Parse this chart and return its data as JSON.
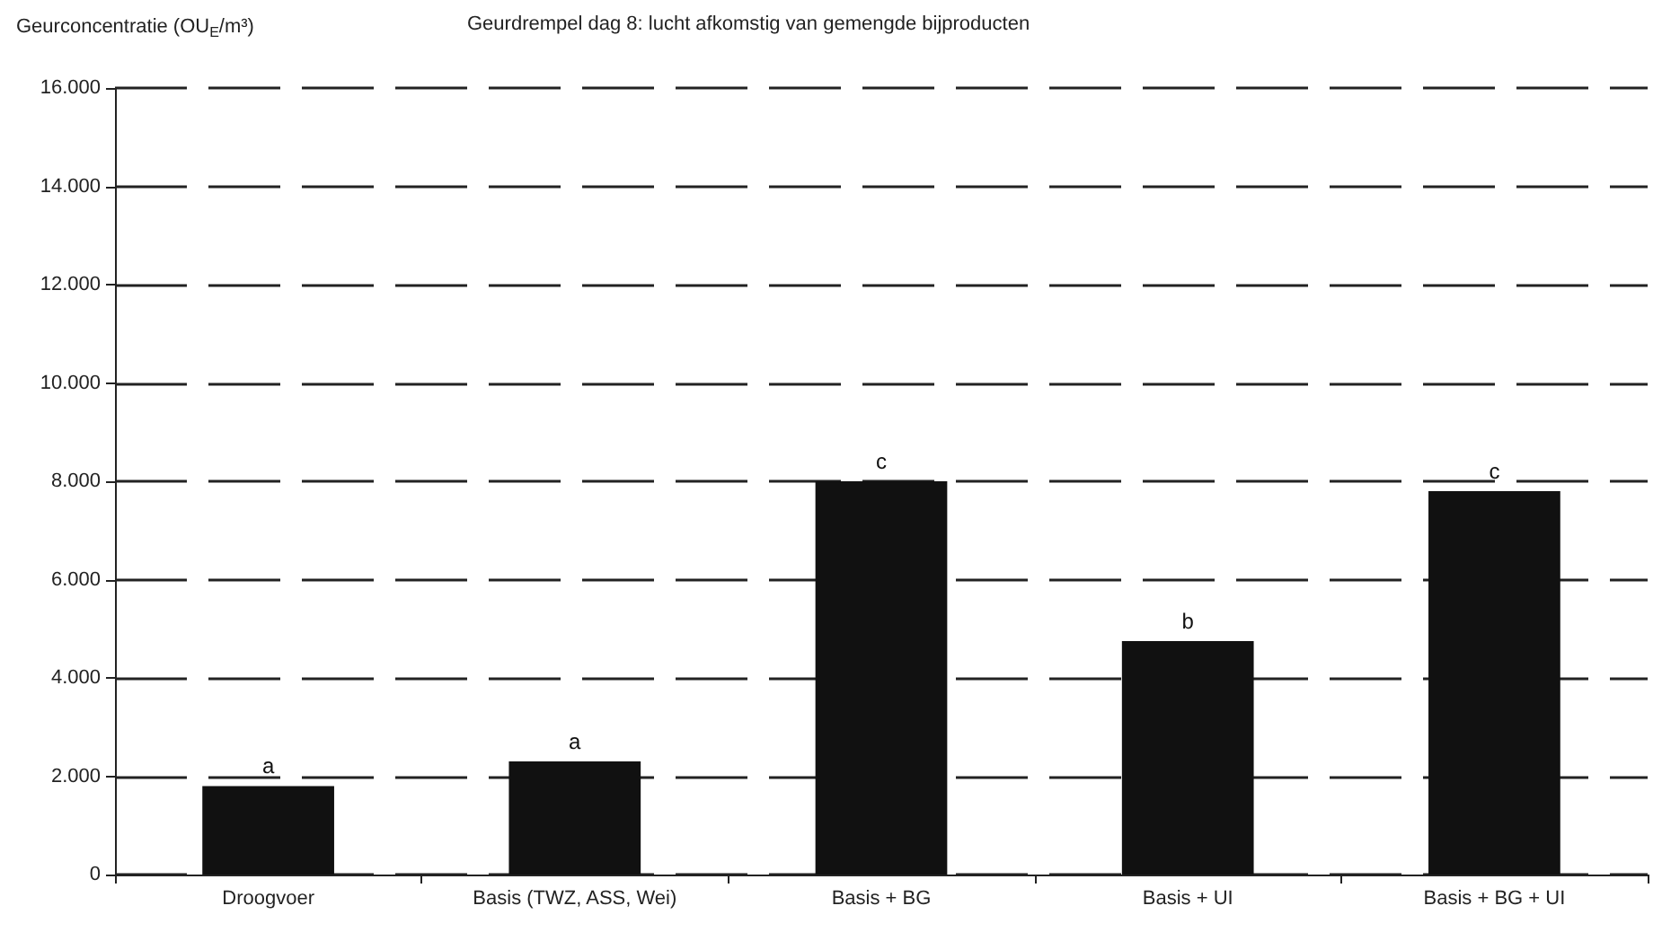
{
  "chart_data": {
    "type": "bar",
    "title": "Geurdrempel dag 8: lucht afkomstig van gemengde bijproducten",
    "ylabel": "Geurconcentratie (OU$_{E}$/m³)",
    "categories": [
      "Droogvoer",
      "Basis (TWZ, ASS, Wei)",
      "Basis + BG",
      "Basis + UI",
      "Basis + BG + UI"
    ],
    "values": [
      1800,
      2300,
      8000,
      4750,
      7800
    ],
    "color": "#111111",
    "ylim": [
      0,
      16000
    ],
    "yticks": [
      0,
      {
        "value": 2000,
        "label": "2.000"
      },
      {
        "value": 4000,
        "label": "4.000"
      },
      {
        "value": 6000,
        "label": "6.000"
      },
      {
        "value": 8000,
        "label": "8.000"
      },
      {
        "value": 10000,
        "label": "10.000"
      },
      {
        "value": 12000,
        "label": "12.000"
      },
      {
        "value": 14000,
        "label": "14.000"
      },
      {
        "value": 16000,
        "label": "16.000"
      }
    ],
    "grid": true,
    "annotations": [
      {
        "text": "a",
        "x": "Droogvoer",
        "y": 1800
      },
      {
        "text": "a",
        "x": "Basis (TWZ, ASS, Wei)",
        "y": 2300
      },
      {
        "text": "c",
        "x": "Basis + BG",
        "y": 8000
      },
      {
        "text": "b",
        "x": "Basis + UI",
        "y": 4750
      },
      {
        "text": "c",
        "x": "Basis + BG + UI",
        "y": 7800
      }
    ]
  }
}
